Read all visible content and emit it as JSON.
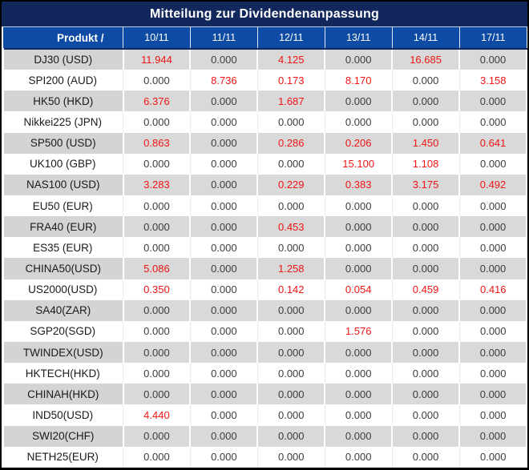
{
  "title": "Mitteilung zur Dividendenanpassung",
  "table": {
    "product_header": "Produkt /",
    "dates": [
      "10/11",
      "11/11",
      "12/11",
      "13/11",
      "14/11",
      "17/11"
    ],
    "rows": [
      {
        "product": "DJ30 (USD)",
        "values": [
          "11.944",
          "0.000",
          "4.125",
          "0.000",
          "16.685",
          "0.000"
        ]
      },
      {
        "product": "SPI200 (AUD)",
        "values": [
          "0.000",
          "8.736",
          "0.173",
          "8.170",
          "0.000",
          "3.158"
        ]
      },
      {
        "product": "HK50 (HKD)",
        "values": [
          "6.376",
          "0.000",
          "1.687",
          "0.000",
          "0.000",
          "0.000"
        ]
      },
      {
        "product": "Nikkei225 (JPN)",
        "values": [
          "0.000",
          "0.000",
          "0.000",
          "0.000",
          "0.000",
          "0.000"
        ]
      },
      {
        "product": "SP500 (USD)",
        "values": [
          "0.863",
          "0.000",
          "0.286",
          "0.206",
          "1.450",
          "0.641"
        ]
      },
      {
        "product": "UK100 (GBP)",
        "values": [
          "0.000",
          "0.000",
          "0.000",
          "15.100",
          "1.108",
          "0.000"
        ]
      },
      {
        "product": "NAS100 (USD)",
        "values": [
          "3.283",
          "0.000",
          "0.229",
          "0.383",
          "3.175",
          "0.492"
        ]
      },
      {
        "product": "EU50 (EUR)",
        "values": [
          "0.000",
          "0.000",
          "0.000",
          "0.000",
          "0.000",
          "0.000"
        ]
      },
      {
        "product": "FRA40 (EUR)",
        "values": [
          "0.000",
          "0.000",
          "0.453",
          "0.000",
          "0.000",
          "0.000"
        ]
      },
      {
        "product": "ES35 (EUR)",
        "values": [
          "0.000",
          "0.000",
          "0.000",
          "0.000",
          "0.000",
          "0.000"
        ]
      },
      {
        "product": "CHINA50(USD)",
        "values": [
          "5.086",
          "0.000",
          "1.258",
          "0.000",
          "0.000",
          "0.000"
        ]
      },
      {
        "product": "US2000(USD)",
        "values": [
          "0.350",
          "0.000",
          "0.142",
          "0.054",
          "0.459",
          "0.416"
        ]
      },
      {
        "product": "SA40(ZAR)",
        "values": [
          "0.000",
          "0.000",
          "0.000",
          "0.000",
          "0.000",
          "0.000"
        ]
      },
      {
        "product": "SGP20(SGD)",
        "values": [
          "0.000",
          "0.000",
          "0.000",
          "1.576",
          "0.000",
          "0.000"
        ]
      },
      {
        "product": "TWINDEX(USD)",
        "values": [
          "0.000",
          "0.000",
          "0.000",
          "0.000",
          "0.000",
          "0.000"
        ]
      },
      {
        "product": "HKTECH(HKD)",
        "values": [
          "0.000",
          "0.000",
          "0.000",
          "0.000",
          "0.000",
          "0.000"
        ]
      },
      {
        "product": "CHINAH(HKD)",
        "values": [
          "0.000",
          "0.000",
          "0.000",
          "0.000",
          "0.000",
          "0.000"
        ]
      },
      {
        "product": "IND50(USD)",
        "values": [
          "4.440",
          "0.000",
          "0.000",
          "0.000",
          "0.000",
          "0.000"
        ]
      },
      {
        "product": "SWI20(CHF)",
        "values": [
          "0.000",
          "0.000",
          "0.000",
          "0.000",
          "0.000",
          "0.000"
        ]
      },
      {
        "product": "NETH25(EUR)",
        "values": [
          "0.000",
          "0.000",
          "0.000",
          "0.000",
          "0.000",
          "0.000"
        ]
      }
    ]
  },
  "colors": {
    "title_bar_bg": "#12275c",
    "header_row_bg": "#0d4ba4",
    "alt_row_bg": "#d9d9d9",
    "nonzero_value_red": "#f01414",
    "zero_value_text": "#3c3c3c"
  }
}
